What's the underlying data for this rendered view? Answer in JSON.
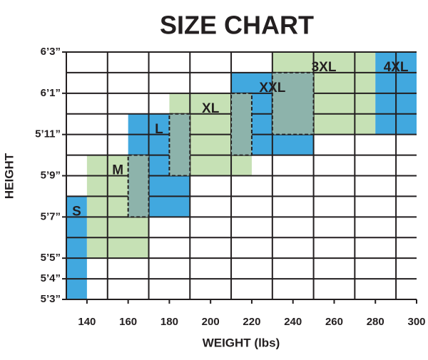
{
  "chart_data": {
    "type": "range",
    "title": "SIZE CHART",
    "x_label": "WEIGHT (lbs)",
    "y_label": "HEIGHT",
    "xlim": [
      130,
      300
    ],
    "ylim": [
      63,
      75
    ],
    "xticks": [
      140,
      160,
      180,
      200,
      220,
      240,
      260,
      280,
      300
    ],
    "yticks": [
      {
        "value": 63,
        "label": "5’3”"
      },
      {
        "value": 64,
        "label": "5’4”"
      },
      {
        "value": 65,
        "label": "5’5”"
      },
      {
        "value": 67,
        "label": "5’7”"
      },
      {
        "value": 69,
        "label": "5’9”"
      },
      {
        "value": 71,
        "label": "5’11”"
      },
      {
        "value": 73,
        "label": "6’1”"
      },
      {
        "value": 75,
        "label": "6’3”"
      }
    ],
    "grid": true,
    "overlap_color": "#8db3ab",
    "series": [
      {
        "name": "S",
        "color": "#41a8df",
        "x": [
          130,
          140
        ],
        "y": [
          63,
          68
        ]
      },
      {
        "name": "M",
        "color": "#c6e1b5",
        "x": [
          140,
          170
        ],
        "y": [
          65,
          70
        ]
      },
      {
        "name": "L",
        "color": "#41a8df",
        "x": [
          160,
          190
        ],
        "y": [
          67,
          72
        ]
      },
      {
        "name": "XL",
        "color": "#c6e1b5",
        "x": [
          180,
          220
        ],
        "y": [
          69,
          73
        ]
      },
      {
        "name": "XXL",
        "color": "#41a8df",
        "x": [
          210,
          250
        ],
        "y": [
          70,
          74
        ]
      },
      {
        "name": "3XL",
        "color": "#c6e1b5",
        "x": [
          230,
          280
        ],
        "y": [
          71,
          75
        ]
      },
      {
        "name": "4XL",
        "color": "#41a8df",
        "x": [
          280,
          300
        ],
        "y": [
          71,
          75
        ]
      }
    ]
  }
}
